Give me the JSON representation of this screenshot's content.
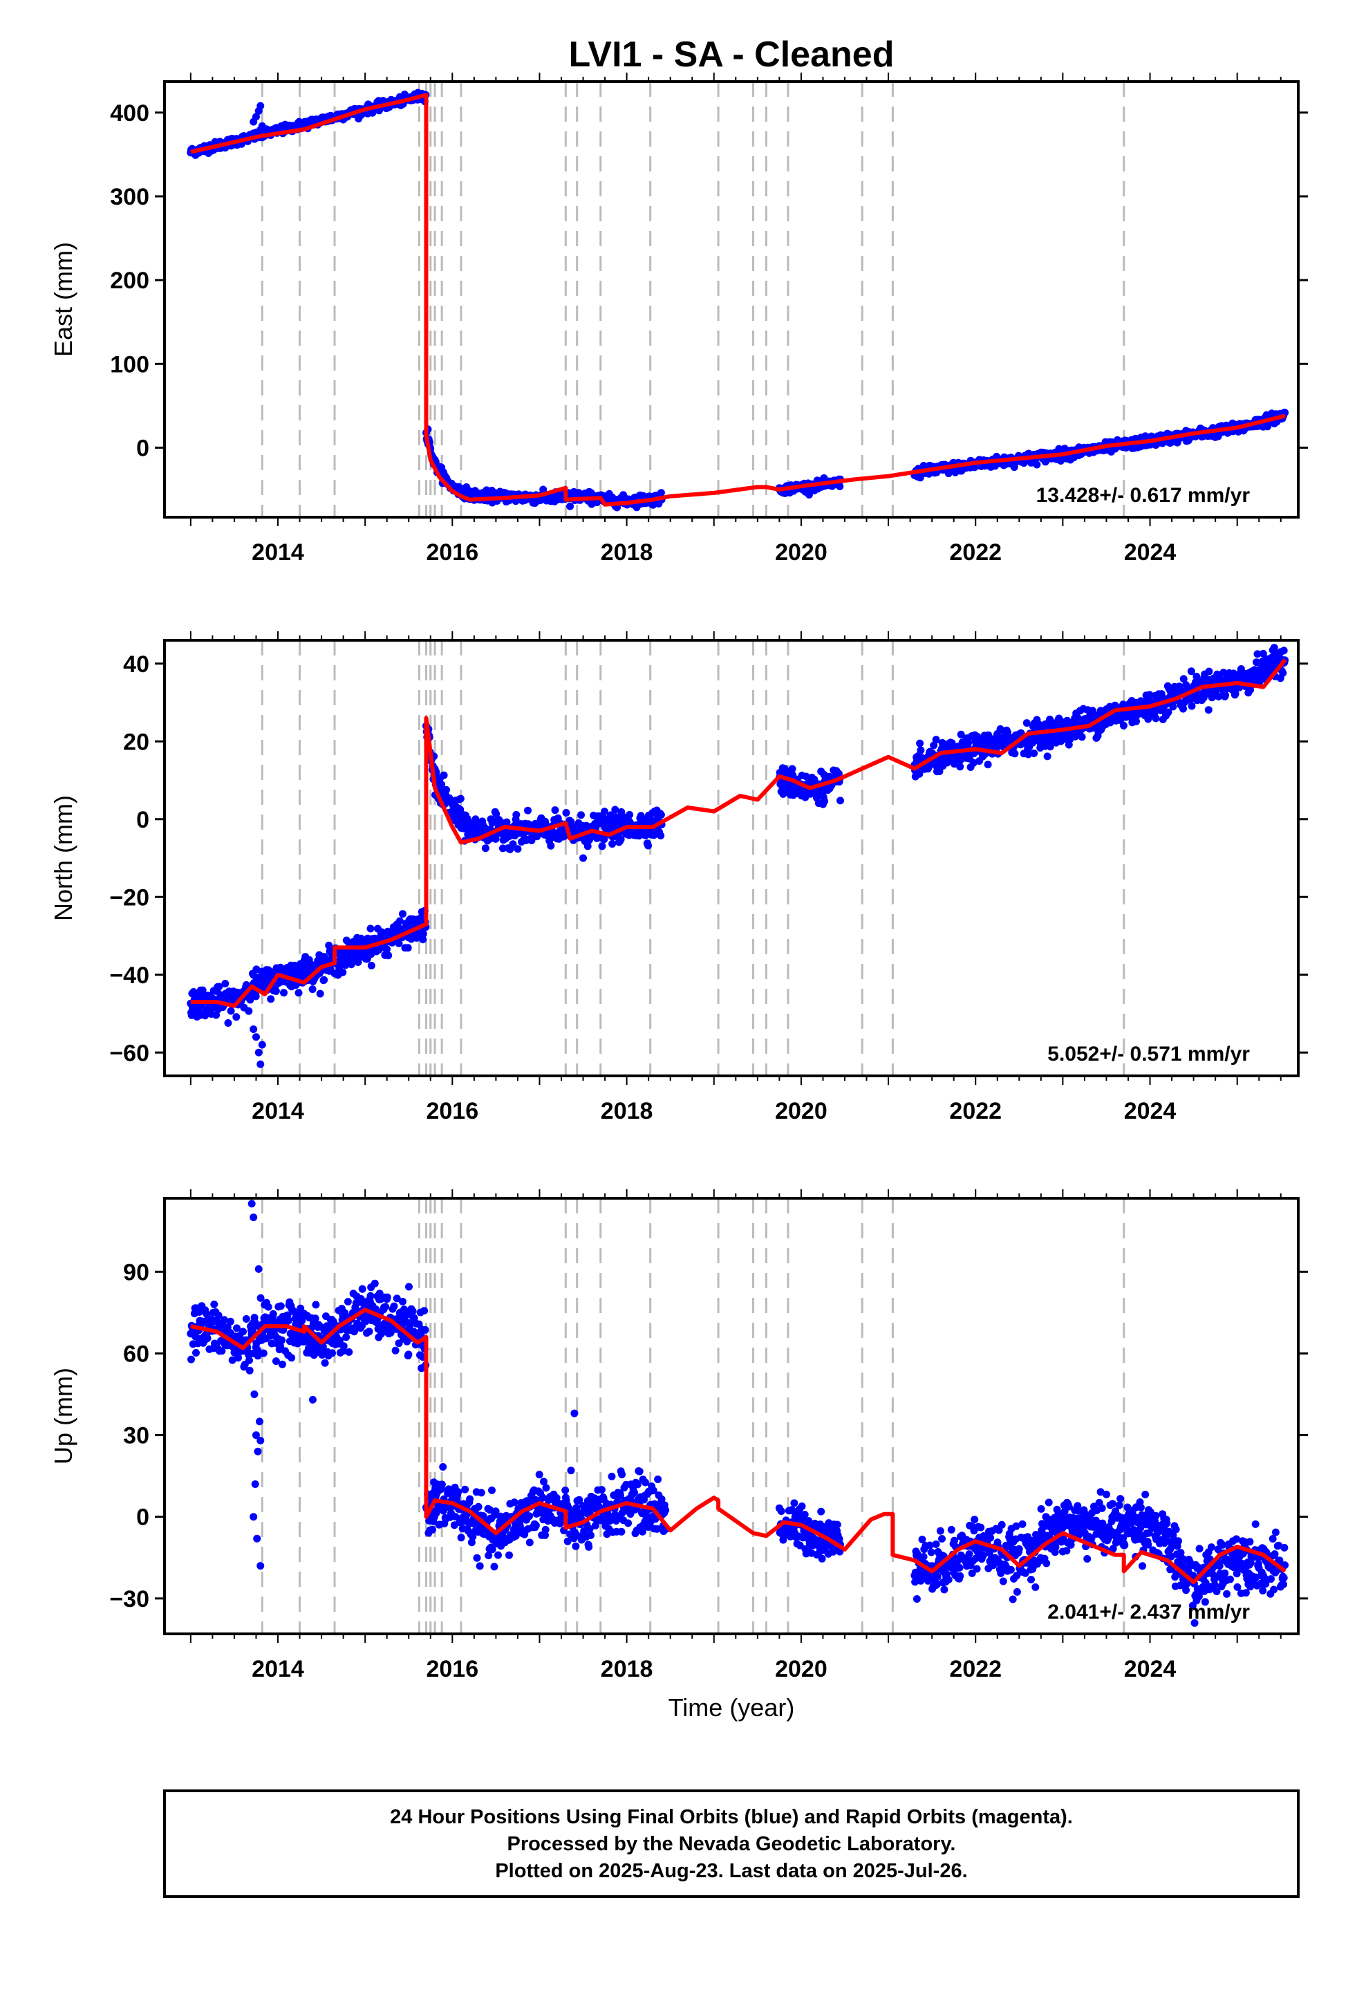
{
  "page": {
    "title": "LVI1  - SA - Cleaned",
    "xlabel": "Time (year)",
    "footer_lines": [
      "24 Hour Positions Using Final Orbits (blue) and Rapid Orbits (magenta).",
      "Processed by the Nevada Geodetic Laboratory.",
      "Plotted on 2025-Aug-23. Last data on 2025-Jul-26."
    ]
  },
  "colors": {
    "points": "#0000ff",
    "model": "#ff0000",
    "breaks": "#bbbbbb",
    "frame": "#000000"
  },
  "chart_data": [
    {
      "type": "scatter",
      "component": "east",
      "ylabel": "East (mm)",
      "ylim": [
        -83,
        437
      ],
      "yticks": [
        0,
        100,
        200,
        300,
        400
      ],
      "xlim": [
        2012.7,
        2025.7
      ],
      "xticks": [
        2014,
        2016,
        2018,
        2020,
        2022,
        2024
      ],
      "rate": "13.428+/- 0.617 mm/yr",
      "model_knots": [
        [
          2013.0,
          353
        ],
        [
          2013.8,
          372
        ],
        [
          2014.3,
          380
        ],
        [
          2014.65,
          392
        ],
        [
          2015.0,
          404
        ],
        [
          2015.4,
          413
        ],
        [
          2015.7,
          421
        ],
        [
          2015.7,
          15
        ],
        [
          2015.75,
          -15
        ],
        [
          2015.85,
          -35
        ],
        [
          2016.0,
          -52
        ],
        [
          2016.1,
          -58
        ],
        [
          2016.2,
          -62
        ],
        [
          2016.6,
          -60
        ],
        [
          2017.0,
          -57
        ],
        [
          2017.3,
          -48
        ],
        [
          2017.3,
          -62
        ],
        [
          2017.7,
          -60
        ],
        [
          2017.75,
          -68
        ],
        [
          2018.0,
          -66
        ],
        [
          2018.3,
          -62
        ],
        [
          2018.5,
          -58
        ],
        [
          2019.0,
          -54
        ],
        [
          2019.5,
          -47
        ],
        [
          2019.6,
          -47
        ],
        [
          2019.75,
          -50
        ],
        [
          2020.0,
          -46
        ],
        [
          2020.3,
          -42
        ],
        [
          2020.6,
          -38
        ],
        [
          2021.0,
          -34
        ],
        [
          2021.5,
          -26
        ],
        [
          2022.0,
          -18
        ],
        [
          2022.6,
          -12
        ],
        [
          2023.0,
          -8
        ],
        [
          2023.5,
          2
        ],
        [
          2024.0,
          8
        ],
        [
          2024.5,
          17
        ],
        [
          2025.0,
          24
        ],
        [
          2025.55,
          38
        ]
      ],
      "segments": [
        {
          "start": 2013.0,
          "end": 2015.7,
          "trend": [
            [
              2013.0,
              353
            ],
            [
              2015.7,
              421
            ]
          ],
          "scatter": 2.5
        },
        {
          "start": 2015.7,
          "end": 2016.2,
          "trend": [
            [
              2015.7,
              15
            ],
            [
              2015.8,
              -20
            ],
            [
              2016.0,
              -48
            ],
            [
              2016.2,
              -55
            ]
          ],
          "scatter": 3
        },
        {
          "start": 2016.2,
          "end": 2018.4,
          "trend": [
            [
              2016.2,
              -57
            ],
            [
              2017.0,
              -60
            ],
            [
              2017.5,
              -58
            ],
            [
              2017.9,
              -64
            ],
            [
              2018.4,
              -61
            ]
          ],
          "scatter": 3
        },
        {
          "start": 2019.75,
          "end": 2020.45,
          "trend": [
            [
              2019.75,
              -50
            ],
            [
              2020.45,
              -42
            ]
          ],
          "scatter": 2.5
        },
        {
          "start": 2021.3,
          "end": 2025.55,
          "trend": [
            [
              2021.3,
              -30
            ],
            [
              2022.0,
              -20
            ],
            [
              2023.0,
              -8
            ],
            [
              2024.0,
              8
            ],
            [
              2025.0,
              23
            ],
            [
              2025.55,
              39
            ]
          ],
          "scatter": 3
        }
      ],
      "outliers": [
        [
          2013.75,
          395
        ],
        [
          2013.78,
          402
        ],
        [
          2013.8,
          408
        ],
        [
          2013.72,
          389
        ],
        [
          2013.82,
          384
        ],
        [
          2015.72,
          22
        ],
        [
          2015.73,
          10
        ],
        [
          2017.35,
          -70
        ],
        [
          2018.2,
          -66
        ]
      ]
    },
    {
      "type": "scatter",
      "component": "north",
      "ylabel": "North (mm)",
      "ylim": [
        -66,
        46
      ],
      "yticks": [
        -60,
        -40,
        -20,
        0,
        20,
        40
      ],
      "xlim": [
        2012.7,
        2025.7
      ],
      "xticks": [
        2014,
        2016,
        2018,
        2020,
        2022,
        2024
      ],
      "rate": "5.052+/- 0.571 mm/yr",
      "model_knots": [
        [
          2013.0,
          -47
        ],
        [
          2013.3,
          -47
        ],
        [
          2013.5,
          -48
        ],
        [
          2013.7,
          -43
        ],
        [
          2013.85,
          -45
        ],
        [
          2014.0,
          -40
        ],
        [
          2014.3,
          -42
        ],
        [
          2014.5,
          -38
        ],
        [
          2014.65,
          -37
        ],
        [
          2014.65,
          -33
        ],
        [
          2015.0,
          -33
        ],
        [
          2015.3,
          -31
        ],
        [
          2015.5,
          -29
        ],
        [
          2015.7,
          -27
        ],
        [
          2015.7,
          26
        ],
        [
          2015.8,
          8
        ],
        [
          2016.0,
          -2
        ],
        [
          2016.1,
          -6
        ],
        [
          2016.3,
          -5
        ],
        [
          2016.6,
          -2
        ],
        [
          2017.0,
          -3
        ],
        [
          2017.3,
          -1
        ],
        [
          2017.35,
          -5
        ],
        [
          2017.6,
          -3
        ],
        [
          2017.8,
          -4
        ],
        [
          2018.0,
          -2
        ],
        [
          2018.3,
          -2
        ],
        [
          2018.7,
          3
        ],
        [
          2019.0,
          2
        ],
        [
          2019.3,
          6
        ],
        [
          2019.5,
          5
        ],
        [
          2019.75,
          11
        ],
        [
          2019.9,
          10
        ],
        [
          2020.1,
          8
        ],
        [
          2020.4,
          10
        ],
        [
          2020.6,
          12
        ],
        [
          2020.8,
          14
        ],
        [
          2021.0,
          16
        ],
        [
          2021.3,
          13
        ],
        [
          2021.6,
          17
        ],
        [
          2022.0,
          18
        ],
        [
          2022.3,
          17
        ],
        [
          2022.6,
          22
        ],
        [
          2023.0,
          23
        ],
        [
          2023.3,
          24
        ],
        [
          2023.6,
          28
        ],
        [
          2024.0,
          29
        ],
        [
          2024.3,
          31
        ],
        [
          2024.6,
          34
        ],
        [
          2025.0,
          35
        ],
        [
          2025.3,
          34
        ],
        [
          2025.55,
          41
        ]
      ],
      "segments": [
        {
          "start": 2013.0,
          "end": 2015.7,
          "trend": [
            [
              2013.0,
              -47
            ],
            [
              2013.5,
              -47
            ],
            [
              2013.7,
              -43
            ],
            [
              2014.0,
              -41
            ],
            [
              2014.5,
              -38
            ],
            [
              2015.0,
              -33
            ],
            [
              2015.7,
              -27
            ]
          ],
          "scatter": 1.8
        },
        {
          "start": 2015.7,
          "end": 2016.2,
          "trend": [
            [
              2015.7,
              24
            ],
            [
              2015.8,
              10
            ],
            [
              2016.0,
              2
            ],
            [
              2016.2,
              -2
            ]
          ],
          "scatter": 2
        },
        {
          "start": 2016.2,
          "end": 2018.4,
          "trend": [
            [
              2016.2,
              -3
            ],
            [
              2017.0,
              -3
            ],
            [
              2017.5,
              -3
            ],
            [
              2018.0,
              -2
            ],
            [
              2018.4,
              -1
            ]
          ],
          "scatter": 1.8
        },
        {
          "start": 2019.75,
          "end": 2020.45,
          "trend": [
            [
              2019.75,
              10
            ],
            [
              2020.1,
              8
            ],
            [
              2020.45,
              9
            ]
          ],
          "scatter": 1.8
        },
        {
          "start": 2021.3,
          "end": 2025.55,
          "trend": [
            [
              2021.3,
              14
            ],
            [
              2022.0,
              18
            ],
            [
              2022.6,
              21
            ],
            [
              2023.0,
              23
            ],
            [
              2023.6,
              27
            ],
            [
              2024.0,
              29
            ],
            [
              2024.6,
              34
            ],
            [
              2025.0,
              35
            ],
            [
              2025.55,
              41
            ]
          ],
          "scatter": 1.8
        }
      ],
      "outliers": [
        [
          2013.75,
          -56
        ],
        [
          2013.78,
          -60
        ],
        [
          2013.8,
          -63
        ],
        [
          2013.82,
          -58
        ],
        [
          2013.72,
          -54
        ],
        [
          2015.72,
          22
        ],
        [
          2017.5,
          -10
        ],
        [
          2025.5,
          43
        ]
      ]
    },
    {
      "type": "scatter",
      "component": "up",
      "ylabel": "Up (mm)",
      "ylim": [
        -43,
        117
      ],
      "yticks": [
        -30,
        0,
        30,
        60,
        90
      ],
      "xlim": [
        2012.7,
        2025.7
      ],
      "xticks": [
        2014,
        2016,
        2018,
        2020,
        2022,
        2024
      ],
      "rate": "2.041+/- 2.437 mm/yr",
      "model_knots": [
        [
          2013.0,
          70
        ],
        [
          2013.3,
          68
        ],
        [
          2013.6,
          62
        ],
        [
          2013.85,
          70
        ],
        [
          2014.1,
          70
        ],
        [
          2014.3,
          68
        ],
        [
          2014.3,
          70
        ],
        [
          2014.5,
          64
        ],
        [
          2014.7,
          70
        ],
        [
          2015.0,
          76
        ],
        [
          2015.3,
          72
        ],
        [
          2015.6,
          64
        ],
        [
          2015.7,
          66
        ],
        [
          2015.7,
          0
        ],
        [
          2015.8,
          6
        ],
        [
          2016.0,
          5
        ],
        [
          2016.2,
          2
        ],
        [
          2016.5,
          -6
        ],
        [
          2016.8,
          2
        ],
        [
          2017.0,
          5
        ],
        [
          2017.3,
          2
        ],
        [
          2017.3,
          -4
        ],
        [
          2017.5,
          -2
        ],
        [
          2017.7,
          2
        ],
        [
          2018.0,
          5
        ],
        [
          2018.3,
          3
        ],
        [
          2018.5,
          -5
        ],
        [
          2018.8,
          3
        ],
        [
          2019.0,
          7
        ],
        [
          2019.05,
          6
        ],
        [
          2019.05,
          3
        ],
        [
          2019.45,
          -6
        ],
        [
          2019.6,
          -7
        ],
        [
          2019.8,
          -2
        ],
        [
          2020.0,
          -3
        ],
        [
          2020.3,
          -8
        ],
        [
          2020.5,
          -12
        ],
        [
          2020.8,
          -1
        ],
        [
          2020.95,
          1
        ],
        [
          2021.05,
          1
        ],
        [
          2021.05,
          -14
        ],
        [
          2021.3,
          -16
        ],
        [
          2021.5,
          -20
        ],
        [
          2021.8,
          -12
        ],
        [
          2022.0,
          -9
        ],
        [
          2022.3,
          -12
        ],
        [
          2022.5,
          -18
        ],
        [
          2022.8,
          -10
        ],
        [
          2023.0,
          -6
        ],
        [
          2023.3,
          -10
        ],
        [
          2023.6,
          -14
        ],
        [
          2023.7,
          -14
        ],
        [
          2023.7,
          -20
        ],
        [
          2023.9,
          -13
        ],
        [
          2024.2,
          -16
        ],
        [
          2024.5,
          -24
        ],
        [
          2024.8,
          -14
        ],
        [
          2025.0,
          -11
        ],
        [
          2025.3,
          -14
        ],
        [
          2025.55,
          -20
        ]
      ],
      "segments": [
        {
          "start": 2013.0,
          "end": 2015.7,
          "trend": [
            [
              2013.0,
              70
            ],
            [
              2013.3,
              68
            ],
            [
              2013.6,
              62
            ],
            [
              2013.85,
              70
            ],
            [
              2014.3,
              69
            ],
            [
              2014.5,
              64
            ],
            [
              2015.0,
              76
            ],
            [
              2015.3,
              72
            ],
            [
              2015.7,
              65
            ]
          ],
          "scatter": 4.5
        },
        {
          "start": 2015.7,
          "end": 2018.45,
          "trend": [
            [
              2015.7,
              3
            ],
            [
              2016.0,
              5
            ],
            [
              2016.5,
              -8
            ],
            [
              2017.0,
              5
            ],
            [
              2017.3,
              0
            ],
            [
              2017.5,
              -3
            ],
            [
              2018.0,
              6
            ],
            [
              2018.45,
              2
            ]
          ],
          "scatter": 5
        },
        {
          "start": 2019.75,
          "end": 2020.45,
          "trend": [
            [
              2019.75,
              -3
            ],
            [
              2020.0,
              -4
            ],
            [
              2020.45,
              -10
            ]
          ],
          "scatter": 4
        },
        {
          "start": 2021.3,
          "end": 2025.55,
          "trend": [
            [
              2021.3,
              -14
            ],
            [
              2021.5,
              -20
            ],
            [
              2022.0,
              -10
            ],
            [
              2022.5,
              -16
            ],
            [
              2023.0,
              -3
            ],
            [
              2023.6,
              -4
            ],
            [
              2024.0,
              -2
            ],
            [
              2024.5,
              -25
            ],
            [
              2025.0,
              -14
            ],
            [
              2025.55,
              -20
            ]
          ],
          "scatter": 5
        }
      ],
      "outliers": [
        [
          2013.7,
          115
        ],
        [
          2013.72,
          110
        ],
        [
          2013.78,
          91
        ],
        [
          2013.75,
          30
        ],
        [
          2013.77,
          24
        ],
        [
          2013.74,
          12
        ],
        [
          2013.72,
          0
        ],
        [
          2013.8,
          -18
        ],
        [
          2013.76,
          -8
        ],
        [
          2013.73,
          45
        ],
        [
          2014.4,
          43
        ],
        [
          2017.4,
          38
        ],
        [
          2013.8,
          28
        ],
        [
          2013.79,
          35
        ]
      ]
    }
  ],
  "breaks": [
    2013.82,
    2014.25,
    2014.65,
    2015.62,
    2015.7,
    2015.75,
    2015.8,
    2015.88,
    2016.1,
    2017.3,
    2017.43,
    2017.7,
    2018.27,
    2019.05,
    2019.45,
    2019.6,
    2019.85,
    2020.7,
    2021.05,
    2023.7
  ]
}
